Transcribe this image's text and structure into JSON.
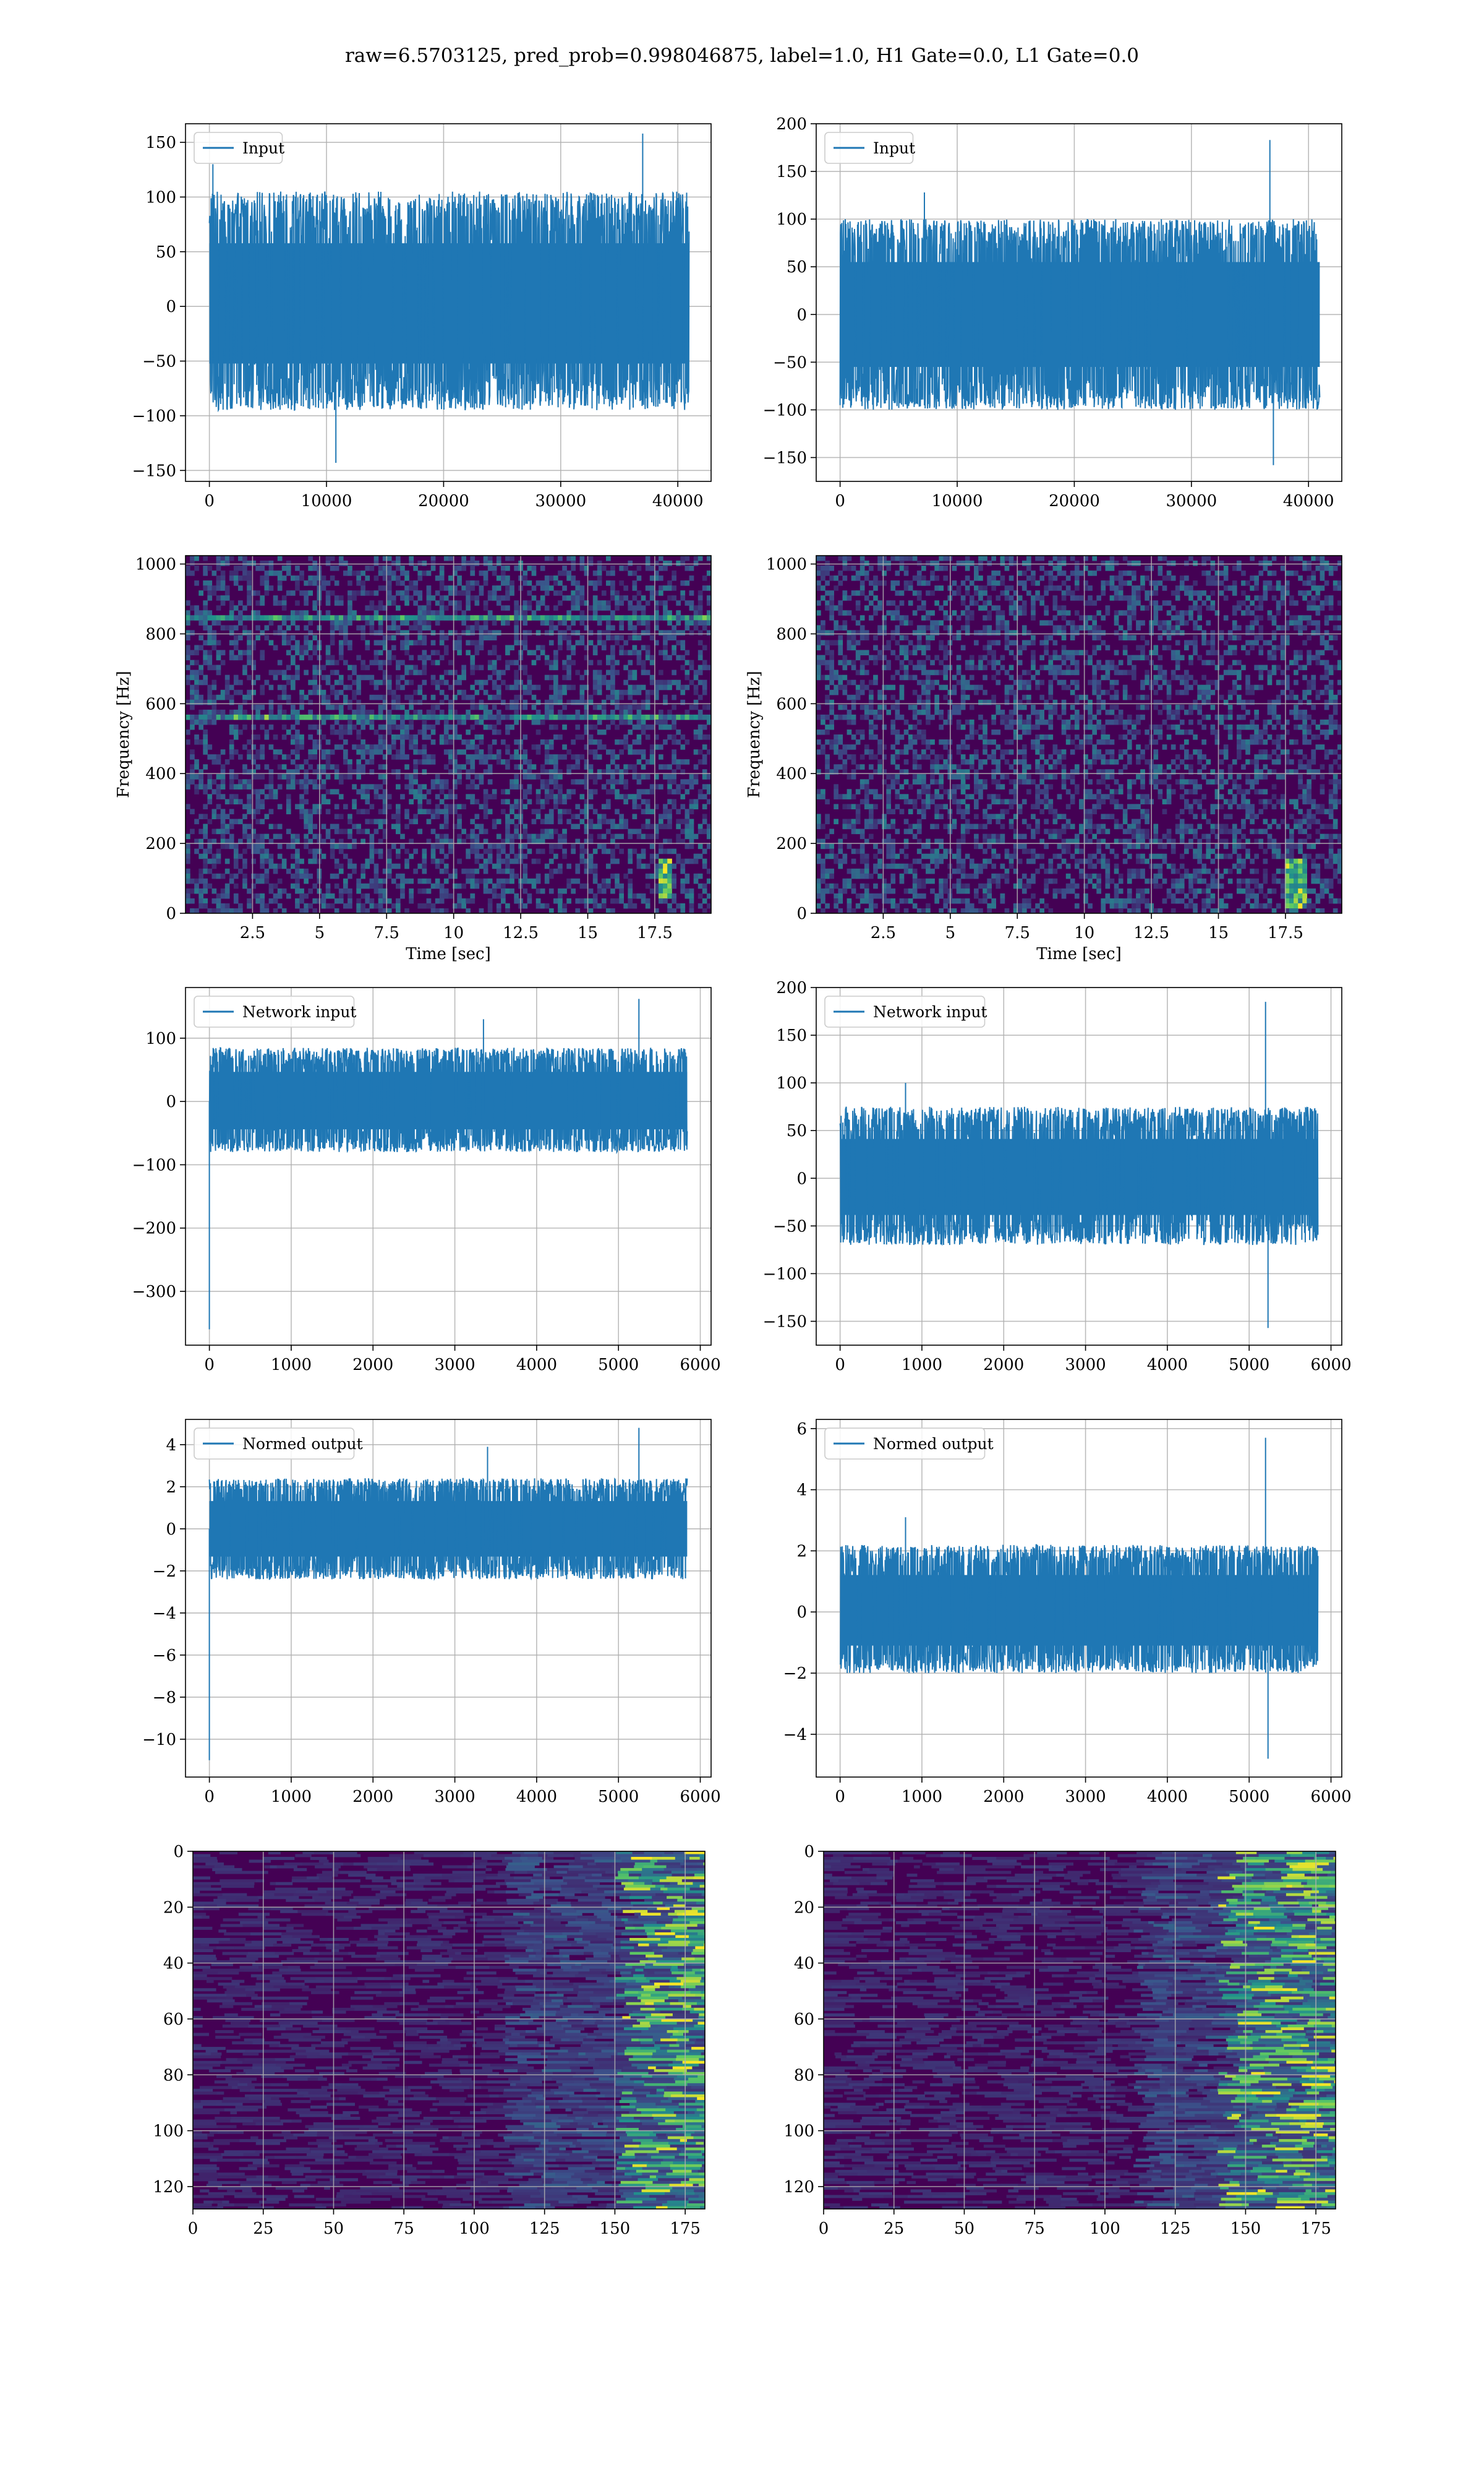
{
  "figure": {
    "suptitle": "raw=6.5703125, pred_prob=0.998046875, label=1.0, H1 Gate=0.0, L1 Gate=0.0"
  },
  "colors": {
    "line": "#1f77b4",
    "grid": "#b0b0b0",
    "spine": "#000000",
    "viridis_low": "#440154",
    "viridis_mid": "#21918c",
    "viridis_high": "#fde725"
  },
  "chart_data": [
    {
      "id": "h1-input",
      "type": "line",
      "title": "",
      "xlabel": "",
      "ylabel": "",
      "xlim": [
        -2040,
        42840
      ],
      "ylim": [
        -160,
        167
      ],
      "xticks": [
        0,
        10000,
        20000,
        30000,
        40000
      ],
      "yticks": [
        -150,
        -100,
        -50,
        0,
        50,
        100,
        150
      ],
      "legend": "upper left",
      "grid": true,
      "series": [
        {
          "name": "Input",
          "n": 40960,
          "x_range": [
            0,
            40960
          ],
          "envelope": [
            -95,
            105
          ],
          "extremes": [
            {
              "x": 37000,
              "y": 158
            },
            {
              "x": 10800,
              "y": -143
            },
            {
              "x": 300,
              "y": 130
            }
          ]
        }
      ]
    },
    {
      "id": "l1-input",
      "type": "line",
      "title": "",
      "xlabel": "",
      "ylabel": "",
      "xlim": [
        -2040,
        42840
      ],
      "ylim": [
        -175,
        200
      ],
      "xticks": [
        0,
        10000,
        20000,
        30000,
        40000
      ],
      "yticks": [
        -150,
        -100,
        -50,
        0,
        50,
        100,
        150,
        200
      ],
      "legend": "upper left",
      "grid": true,
      "series": [
        {
          "name": "Input",
          "n": 40960,
          "x_range": [
            0,
            40960
          ],
          "envelope": [
            -100,
            100
          ],
          "extremes": [
            {
              "x": 36700,
              "y": 183
            },
            {
              "x": 37000,
              "y": -158
            },
            {
              "x": 7200,
              "y": 128
            }
          ]
        }
      ]
    },
    {
      "id": "h1-spectrogram",
      "type": "heatmap",
      "title": "",
      "xlabel": "Time [sec]",
      "ylabel": "Frequency [Hz]",
      "xlim": [
        0,
        19.6
      ],
      "ylim": [
        0,
        1024
      ],
      "xticks": [
        2.5,
        5.0,
        7.5,
        10.0,
        12.5,
        15.0,
        17.5
      ],
      "yticks": [
        0,
        200,
        400,
        600,
        800,
        1000
      ],
      "colormap": "viridis",
      "grid": true,
      "features": [
        {
          "kind": "line",
          "freq_hz": 845,
          "t_range": [
            0,
            19.6
          ]
        },
        {
          "kind": "line",
          "freq_hz": 560,
          "t_range": [
            0,
            19.6
          ]
        },
        {
          "kind": "chirp",
          "t_range": [
            17.8,
            18.0
          ],
          "f_range": [
            60,
            140
          ]
        }
      ]
    },
    {
      "id": "l1-spectrogram",
      "type": "heatmap",
      "title": "",
      "xlabel": "Time [sec]",
      "ylabel": "Frequency [Hz]",
      "xlim": [
        0,
        19.6
      ],
      "ylim": [
        0,
        1024
      ],
      "xticks": [
        2.5,
        5.0,
        7.5,
        10.0,
        12.5,
        15.0,
        17.5
      ],
      "yticks": [
        0,
        200,
        400,
        600,
        800,
        1000
      ],
      "colormap": "viridis",
      "grid": true,
      "features": [
        {
          "kind": "chirp",
          "t_range": [
            17.6,
            18.1
          ],
          "f_range": [
            30,
            140
          ]
        }
      ]
    },
    {
      "id": "h1-network-input",
      "type": "line",
      "title": "",
      "xlabel": "",
      "ylabel": "",
      "xlim": [
        -292,
        6132
      ],
      "ylim": [
        -385,
        180
      ],
      "xticks": [
        0,
        1000,
        2000,
        3000,
        4000,
        5000,
        6000
      ],
      "yticks": [
        -300,
        -200,
        -100,
        0,
        100
      ],
      "legend": "upper left",
      "grid": true,
      "series": [
        {
          "name": "Network input",
          "n": 5840,
          "x_range": [
            0,
            5840
          ],
          "envelope": [
            -80,
            85
          ],
          "extremes": [
            {
              "x": 0,
              "y": -360
            },
            {
              "x": 5250,
              "y": 162
            },
            {
              "x": 3350,
              "y": 130
            }
          ]
        }
      ]
    },
    {
      "id": "l1-network-input",
      "type": "line",
      "title": "",
      "xlabel": "",
      "ylabel": "",
      "xlim": [
        -292,
        6132
      ],
      "ylim": [
        -175,
        200
      ],
      "xticks": [
        0,
        1000,
        2000,
        3000,
        4000,
        5000,
        6000
      ],
      "yticks": [
        -150,
        -100,
        -50,
        0,
        50,
        100,
        150,
        200
      ],
      "legend": "upper left",
      "grid": true,
      "series": [
        {
          "name": "Network input",
          "n": 5840,
          "x_range": [
            0,
            5840
          ],
          "envelope": [
            -70,
            75
          ],
          "extremes": [
            {
              "x": 5200,
              "y": 185
            },
            {
              "x": 5230,
              "y": -157
            },
            {
              "x": 800,
              "y": 100
            }
          ]
        }
      ]
    },
    {
      "id": "h1-normed-output",
      "type": "line",
      "title": "",
      "xlabel": "",
      "ylabel": "",
      "xlim": [
        -292,
        6132
      ],
      "ylim": [
        -11.8,
        5.2
      ],
      "xticks": [
        0,
        1000,
        2000,
        3000,
        4000,
        5000,
        6000
      ],
      "yticks": [
        -10,
        -8,
        -6,
        -4,
        -2,
        0,
        2,
        4
      ],
      "legend": "upper left",
      "grid": true,
      "series": [
        {
          "name": "Normed output",
          "n": 5840,
          "x_range": [
            0,
            5840
          ],
          "envelope": [
            -2.4,
            2.4
          ],
          "extremes": [
            {
              "x": 0,
              "y": -11.0
            },
            {
              "x": 5250,
              "y": 4.8
            },
            {
              "x": 3400,
              "y": 3.9
            }
          ]
        }
      ]
    },
    {
      "id": "l1-normed-output",
      "type": "line",
      "title": "",
      "xlabel": "",
      "ylabel": "",
      "xlim": [
        -292,
        6132
      ],
      "ylim": [
        -5.4,
        6.3
      ],
      "xticks": [
        0,
        1000,
        2000,
        3000,
        4000,
        5000,
        6000
      ],
      "yticks": [
        -4,
        -2,
        0,
        2,
        4,
        6
      ],
      "legend": "upper left",
      "grid": true,
      "series": [
        {
          "name": "Normed output",
          "n": 5840,
          "x_range": [
            0,
            5840
          ],
          "envelope": [
            -2.0,
            2.2
          ],
          "extremes": [
            {
              "x": 5200,
              "y": 5.7
            },
            {
              "x": 5230,
              "y": -4.8
            },
            {
              "x": 800,
              "y": 3.1
            }
          ]
        }
      ]
    },
    {
      "id": "h1-feature-map",
      "type": "heatmap",
      "title": "",
      "xlabel": "",
      "ylabel": "",
      "xlim": [
        0,
        182
      ],
      "ylim": [
        128,
        0
      ],
      "xticks": [
        0,
        25,
        50,
        75,
        100,
        125,
        150,
        175
      ],
      "yticks": [
        0,
        20,
        40,
        60,
        80,
        100,
        120
      ],
      "colormap": "viridis",
      "grid": true,
      "features": [
        {
          "kind": "active-band",
          "x_range": [
            150,
            182
          ]
        }
      ]
    },
    {
      "id": "l1-feature-map",
      "type": "heatmap",
      "title": "",
      "xlabel": "",
      "ylabel": "",
      "xlim": [
        0,
        182
      ],
      "ylim": [
        128,
        0
      ],
      "xticks": [
        0,
        25,
        50,
        75,
        100,
        125,
        150,
        175
      ],
      "yticks": [
        0,
        20,
        40,
        60,
        80,
        100,
        120
      ],
      "colormap": "viridis",
      "grid": true,
      "features": [
        {
          "kind": "active-band",
          "x_range": [
            140,
            182
          ]
        }
      ]
    }
  ]
}
